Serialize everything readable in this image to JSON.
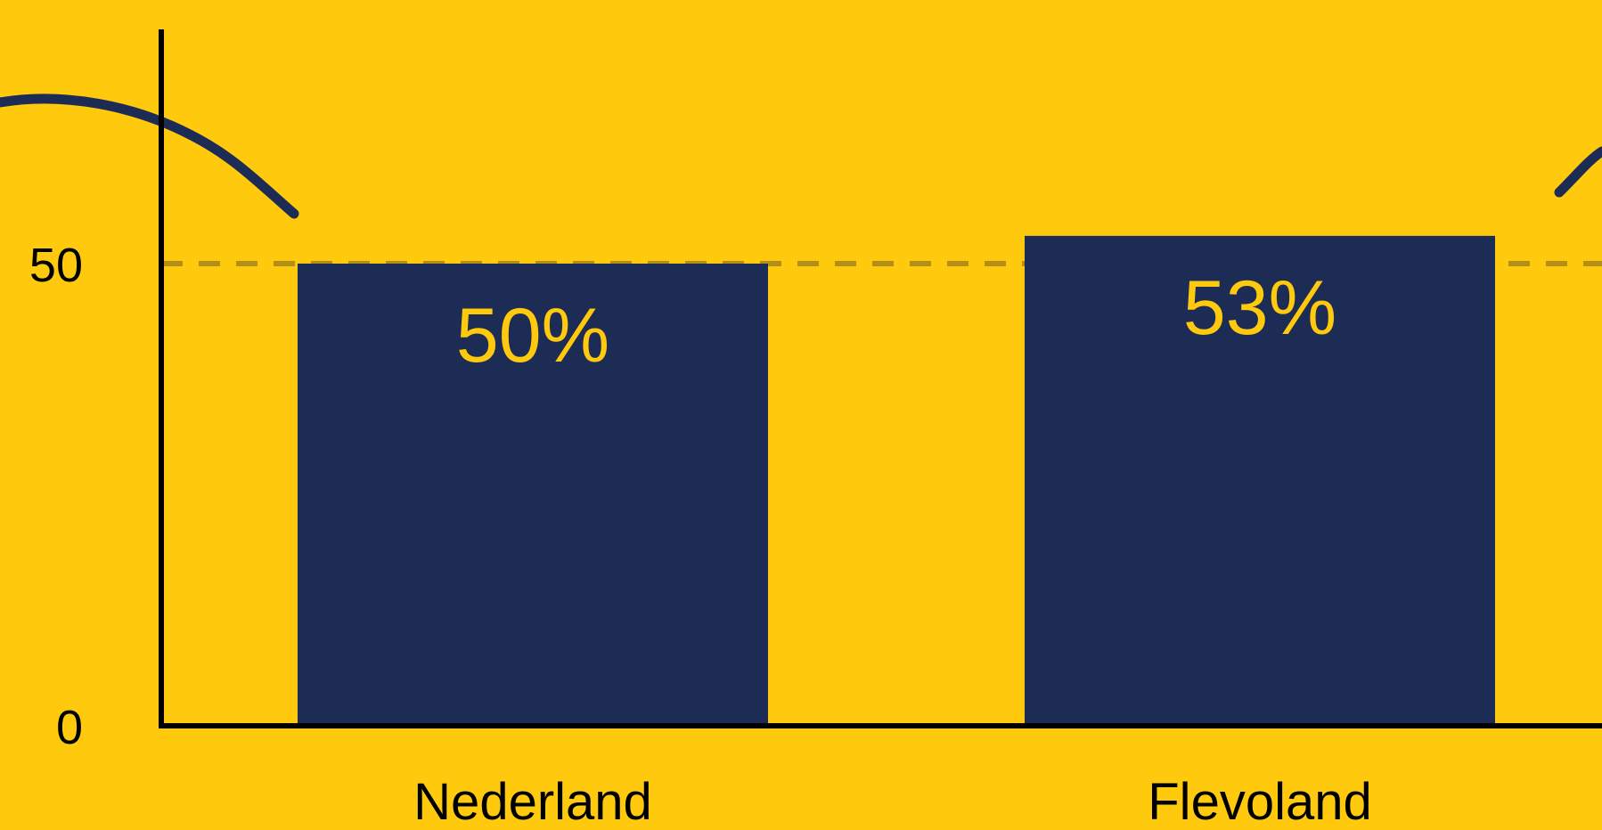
{
  "chart_data": {
    "type": "bar",
    "categories": [
      "Nederland",
      "Flevoland"
    ],
    "values": [
      50,
      53
    ],
    "data_labels": [
      "50%",
      "53%"
    ],
    "title": "",
    "xlabel": "",
    "ylabel": "",
    "ylim": [
      0,
      80
    ],
    "y_ticks": [
      {
        "value": 0,
        "label": "0"
      },
      {
        "value": 50,
        "label": "50"
      }
    ],
    "reference_line": {
      "value": 50,
      "style": "dashed"
    },
    "grid": false,
    "legend": "none"
  },
  "colors": {
    "background": "#FFC90E",
    "bar": "#1C2C54",
    "data_label": "#FFC90E",
    "axis": "#000000",
    "text": "#000000",
    "reference_line": "#B38F17",
    "decoration": "#1C2C54"
  }
}
